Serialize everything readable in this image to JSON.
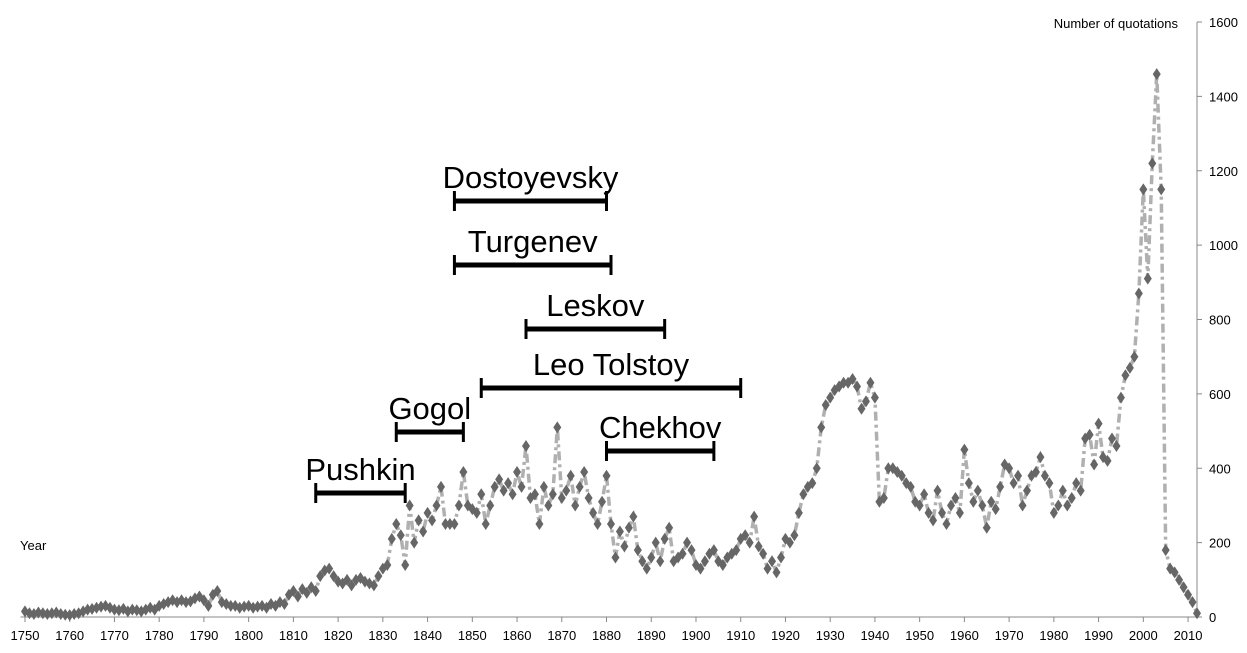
{
  "chart_data": {
    "type": "line",
    "x_label": "Year",
    "y_label": "Number of quotations",
    "x": [
      1750,
      1751,
      1752,
      1753,
      1754,
      1755,
      1756,
      1757,
      1758,
      1759,
      1760,
      1761,
      1762,
      1763,
      1764,
      1765,
      1766,
      1767,
      1768,
      1769,
      1770,
      1771,
      1772,
      1773,
      1774,
      1775,
      1776,
      1777,
      1778,
      1779,
      1780,
      1781,
      1782,
      1783,
      1784,
      1785,
      1786,
      1787,
      1788,
      1789,
      1790,
      1791,
      1792,
      1793,
      1794,
      1795,
      1796,
      1797,
      1798,
      1799,
      1800,
      1801,
      1802,
      1803,
      1804,
      1805,
      1806,
      1807,
      1808,
      1809,
      1810,
      1811,
      1812,
      1813,
      1814,
      1815,
      1816,
      1817,
      1818,
      1819,
      1820,
      1821,
      1822,
      1823,
      1824,
      1825,
      1826,
      1827,
      1828,
      1829,
      1830,
      1831,
      1832,
      1833,
      1834,
      1835,
      1836,
      1837,
      1838,
      1839,
      1840,
      1841,
      1842,
      1843,
      1844,
      1845,
      1846,
      1847,
      1848,
      1849,
      1850,
      1851,
      1852,
      1853,
      1854,
      1855,
      1856,
      1857,
      1858,
      1859,
      1860,
      1861,
      1862,
      1863,
      1864,
      1865,
      1866,
      1867,
      1868,
      1869,
      1870,
      1871,
      1872,
      1873,
      1874,
      1875,
      1876,
      1877,
      1878,
      1879,
      1880,
      1881,
      1882,
      1883,
      1884,
      1885,
      1886,
      1887,
      1888,
      1889,
      1890,
      1891,
      1892,
      1893,
      1894,
      1895,
      1896,
      1897,
      1898,
      1899,
      1900,
      1901,
      1902,
      1903,
      1904,
      1905,
      1906,
      1907,
      1908,
      1909,
      1910,
      1911,
      1912,
      1913,
      1914,
      1915,
      1916,
      1917,
      1918,
      1919,
      1920,
      1921,
      1922,
      1923,
      1924,
      1925,
      1926,
      1927,
      1928,
      1929,
      1930,
      1931,
      1932,
      1933,
      1934,
      1935,
      1936,
      1937,
      1938,
      1939,
      1940,
      1941,
      1942,
      1943,
      1944,
      1945,
      1946,
      1947,
      1948,
      1949,
      1950,
      1951,
      1952,
      1953,
      1954,
      1955,
      1956,
      1957,
      1958,
      1959,
      1960,
      1961,
      1962,
      1963,
      1964,
      1965,
      1966,
      1967,
      1968,
      1969,
      1970,
      1971,
      1972,
      1973,
      1974,
      1975,
      1976,
      1977,
      1978,
      1979,
      1980,
      1981,
      1982,
      1983,
      1984,
      1985,
      1986,
      1987,
      1988,
      1989,
      1990,
      1991,
      1992,
      1993,
      1994,
      1995,
      1996,
      1997,
      1998,
      1999,
      2000,
      2001,
      2002,
      2003,
      2004,
      2005,
      2006,
      2007,
      2008,
      2009,
      2010,
      2011,
      2012
    ],
    "series": [
      {
        "color": "#666666",
        "line_color": "#b0b0b0",
        "values": [
          15,
          10,
          8,
          12,
          10,
          8,
          10,
          12,
          8,
          6,
          5,
          8,
          10,
          15,
          20,
          22,
          25,
          28,
          30,
          25,
          20,
          18,
          22,
          15,
          20,
          18,
          15,
          20,
          25,
          20,
          30,
          35,
          40,
          45,
          40,
          45,
          40,
          42,
          50,
          55,
          45,
          30,
          60,
          70,
          40,
          35,
          30,
          30,
          25,
          28,
          30,
          25,
          28,
          30,
          25,
          35,
          30,
          40,
          35,
          60,
          70,
          55,
          75,
          65,
          80,
          70,
          110,
          125,
          130,
          110,
          95,
          90,
          100,
          85,
          100,
          105,
          95,
          90,
          85,
          110,
          130,
          140,
          210,
          250,
          220,
          140,
          300,
          200,
          260,
          230,
          280,
          260,
          300,
          350,
          250,
          250,
          250,
          300,
          390,
          300,
          290,
          280,
          330,
          250,
          300,
          350,
          370,
          340,
          360,
          330,
          390,
          350,
          460,
          320,
          330,
          250,
          350,
          300,
          330,
          510,
          320,
          340,
          380,
          300,
          350,
          390,
          320,
          280,
          250,
          310,
          380,
          250,
          160,
          230,
          190,
          240,
          270,
          180,
          150,
          130,
          160,
          200,
          150,
          210,
          240,
          150,
          160,
          170,
          200,
          180,
          140,
          130,
          150,
          170,
          180,
          150,
          140,
          160,
          170,
          180,
          210,
          220,
          200,
          270,
          190,
          170,
          130,
          150,
          120,
          160,
          210,
          200,
          220,
          280,
          330,
          350,
          360,
          400,
          510,
          570,
          590,
          610,
          620,
          630,
          630,
          640,
          620,
          560,
          580,
          630,
          590,
          310,
          320,
          400,
          400,
          390,
          380,
          360,
          350,
          310,
          300,
          330,
          280,
          260,
          340,
          280,
          250,
          300,
          320,
          280,
          450,
          360,
          310,
          340,
          300,
          240,
          310,
          290,
          350,
          410,
          400,
          360,
          380,
          300,
          340,
          380,
          390,
          430,
          380,
          360,
          280,
          300,
          340,
          300,
          320,
          360,
          340,
          480,
          490,
          410,
          520,
          430,
          420,
          480,
          460,
          590,
          650,
          670,
          700,
          870,
          1150,
          910,
          1220,
          1460,
          1150,
          180,
          130,
          120,
          100,
          80,
          60,
          40,
          10
        ]
      }
    ],
    "xlim": [
      1749,
      2012
    ],
    "xticks": [
      1750,
      1760,
      1770,
      1780,
      1790,
      1800,
      1810,
      1820,
      1830,
      1840,
      1850,
      1860,
      1870,
      1880,
      1890,
      1900,
      1910,
      1920,
      1930,
      1940,
      1950,
      1960,
      1970,
      1980,
      1990,
      2000,
      2010
    ],
    "ylim": [
      0,
      1600
    ],
    "yticks": [
      0,
      200,
      400,
      600,
      800,
      1000,
      1200,
      1400,
      1600
    ],
    "annotations": [
      {
        "text": "Dostoyevsky",
        "start": 1846,
        "end": 1880
      },
      {
        "text": "Turgenev",
        "start": 1846,
        "end": 1881
      },
      {
        "text": "Leskov",
        "start": 1862,
        "end": 1893
      },
      {
        "text": "Leo Tolstoy",
        "start": 1852,
        "end": 1910
      },
      {
        "text": "Gogol",
        "start": 1833,
        "end": 1848
      },
      {
        "text": "Chekhov",
        "start": 1880,
        "end": 1904
      },
      {
        "text": "Pushkin",
        "start": 1815,
        "end": 1835
      }
    ]
  }
}
